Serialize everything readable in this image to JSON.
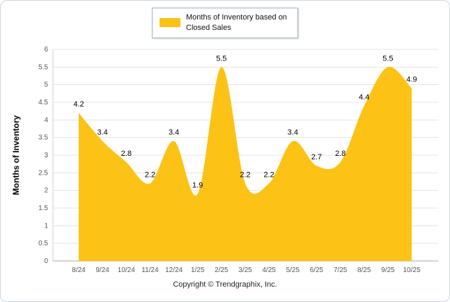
{
  "legend": {
    "label": "Months of Inventory based on Closed Sales"
  },
  "footer": {
    "copyright": "Copyright © Trendgraphix, Inc."
  },
  "chart_data": {
    "type": "area",
    "title": "",
    "xlabel": "",
    "ylabel": "Months of Inventory",
    "categories": [
      "8/24",
      "9/24",
      "10/24",
      "11/24",
      "12/24",
      "1/25",
      "2/25",
      "3/25",
      "4/25",
      "5/25",
      "6/25",
      "7/25",
      "8/25",
      "9/25",
      "10/25"
    ],
    "values": [
      4.2,
      3.4,
      2.8,
      2.2,
      3.4,
      1.9,
      5.5,
      2.2,
      2.2,
      3.4,
      2.7,
      2.8,
      4.4,
      5.5,
      4.9
    ],
    "series_name": "Months of Inventory based on Closed Sales",
    "ylim": [
      0,
      6
    ],
    "ytick_step": 0.5,
    "grid": true,
    "legend_position": "top",
    "fill_color": "#fdc216",
    "grid_color": "#e4e4e4",
    "axis_text_color": "#555555",
    "label_color": "#000000"
  }
}
